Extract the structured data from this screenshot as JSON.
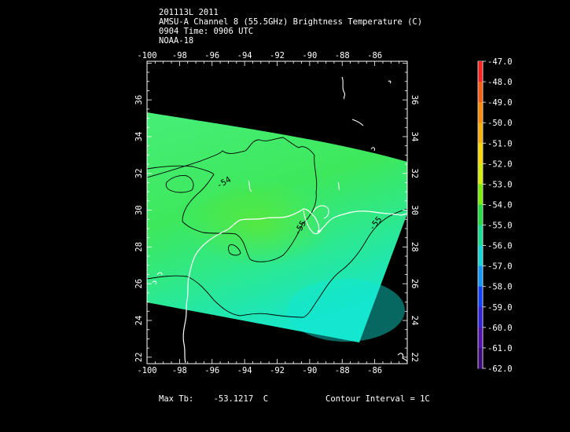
{
  "header": {
    "line1": "201113L 2011",
    "line2": "AMSU-A Channel 8 (55.5GHz) Brightness Temperature (C)",
    "line3": "0904 Time: 0906 UTC",
    "line4": "NOAA-18"
  },
  "map": {
    "lon_ticks": [
      "-100",
      "-98",
      "-96",
      "-94",
      "-92",
      "-90",
      "-88",
      "-86"
    ],
    "lat_ticks": [
      "22",
      "24",
      "26",
      "28",
      "30",
      "32",
      "34",
      "36"
    ],
    "contour_labels": [
      "-54",
      "-55",
      "-55"
    ],
    "swath_color_top": "#3ee86a",
    "swath_color_bottom": "#1ee6c0"
  },
  "colorbar": {
    "labels": [
      "-47.0",
      "-48.0",
      "-49.0",
      "-50.0",
      "-51.0",
      "-52.0",
      "-53.0",
      "-54.0",
      "-55.0",
      "-56.0",
      "-57.0",
      "-58.0",
      "-59.0",
      "-60.0",
      "-61.0",
      "-62.0"
    ],
    "colors": [
      "#ff2020",
      "#ff5a10",
      "#ff8c00",
      "#ffb000",
      "#ffd800",
      "#d8f000",
      "#78f000",
      "#20e040",
      "#10e090",
      "#10d8d8",
      "#1098ff",
      "#1040ff",
      "#3020e0",
      "#5010b0",
      "#400880",
      "#200040"
    ]
  },
  "footer": {
    "max_tb_label": "Max Tb:",
    "max_tb_value": "-53.1217",
    "max_tb_unit": "C",
    "contour_interval": "Contour Interval = 1C"
  }
}
